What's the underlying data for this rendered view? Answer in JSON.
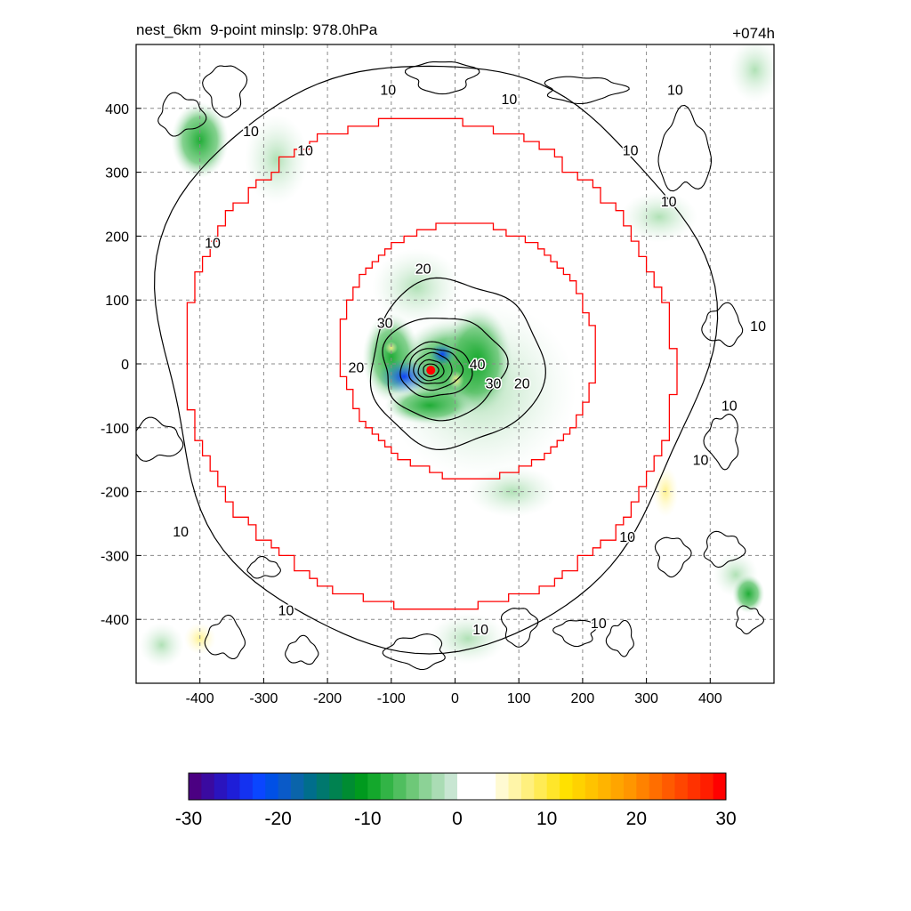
{
  "chart_data": {
    "type": "heatmap",
    "title_left": "nest_6km  9-point minslp: 978.0hPa",
    "title_right": "+074h",
    "xlim": [
      -500,
      500
    ],
    "ylim": [
      -500,
      500
    ],
    "x_ticks": [
      "-400",
      "-300",
      "-200",
      "-100",
      "0",
      "100",
      "200",
      "300",
      "400"
    ],
    "y_ticks": [
      "400",
      "300",
      "200",
      "100",
      "0",
      "-100",
      "-200",
      "-300",
      "-400"
    ],
    "x_tick_values": [
      -400,
      -300,
      -200,
      -100,
      0,
      100,
      200,
      300,
      400
    ],
    "y_tick_values": [
      400,
      300,
      200,
      100,
      0,
      -100,
      -200,
      -300,
      -400
    ],
    "grid": true,
    "center_marker": {
      "x": -38,
      "y": -10,
      "color": "#ff0000"
    },
    "contour_labels": [
      {
        "text": "10",
        "x": -320,
        "y": 365
      },
      {
        "text": "10",
        "x": -105,
        "y": 430
      },
      {
        "text": "10",
        "x": -235,
        "y": 335
      },
      {
        "text": "10",
        "x": 85,
        "y": 415
      },
      {
        "text": "10",
        "x": 345,
        "y": 430
      },
      {
        "text": "10",
        "x": 275,
        "y": 335
      },
      {
        "text": "10",
        "x": 335,
        "y": 255
      },
      {
        "text": "10",
        "x": -380,
        "y": 190
      },
      {
        "text": "10",
        "x": 475,
        "y": 60
      },
      {
        "text": "10",
        "x": 430,
        "y": -65
      },
      {
        "text": "10",
        "x": 385,
        "y": -150
      },
      {
        "text": "10",
        "x": -430,
        "y": -262
      },
      {
        "text": "10",
        "x": 270,
        "y": -270
      },
      {
        "text": "10",
        "x": -265,
        "y": -385
      },
      {
        "text": "10",
        "x": 40,
        "y": -415
      },
      {
        "text": "10",
        "x": 225,
        "y": -405
      },
      {
        "text": "20",
        "x": -50,
        "y": 150
      },
      {
        "text": "20",
        "x": 105,
        "y": -30
      },
      {
        "text": "20",
        "x": -155,
        "y": -5
      },
      {
        "text": "30",
        "x": -110,
        "y": 65
      },
      {
        "text": "30",
        "x": 60,
        "y": -30
      },
      {
        "text": "40",
        "x": 35,
        "y": 0
      }
    ],
    "colorbar": {
      "ticks": [
        "-30",
        "-20",
        "-10",
        "0",
        "10",
        "20",
        "30"
      ],
      "tick_values": [
        -30,
        -20,
        -10,
        0,
        10,
        20,
        30
      ],
      "range": [
        -30,
        30
      ],
      "colors": [
        "#4b0082",
        "#3a0aa0",
        "#2a14be",
        "#1e1ed8",
        "#1432f0",
        "#0a46ff",
        "#0050e6",
        "#0a5ac8",
        "#0a64aa",
        "#006e8c",
        "#00786e",
        "#008250",
        "#008c32",
        "#009a1e",
        "#14a82c",
        "#32b446",
        "#50be5f",
        "#6ec878",
        "#8cd296",
        "#aadcb4",
        "#c8e6d2",
        "#ffffff",
        "#ffffff",
        "#ffffff",
        "#fffad2",
        "#fff5a8",
        "#fff07e",
        "#ffeb54",
        "#ffe62a",
        "#ffe100",
        "#ffd200",
        "#ffc300",
        "#ffb400",
        "#ffa500",
        "#ff9600",
        "#ff8200",
        "#ff6e00",
        "#ff5a00",
        "#ff4600",
        "#ff3200",
        "#ff1e00",
        "#ff0000"
      ]
    },
    "colors": {
      "inner_boundary": "#ff0000",
      "contour": "#000000",
      "shade_green": "#3cb44b",
      "shade_blue": "#0a3cff",
      "shade_yellow": "#fff07e"
    }
  }
}
